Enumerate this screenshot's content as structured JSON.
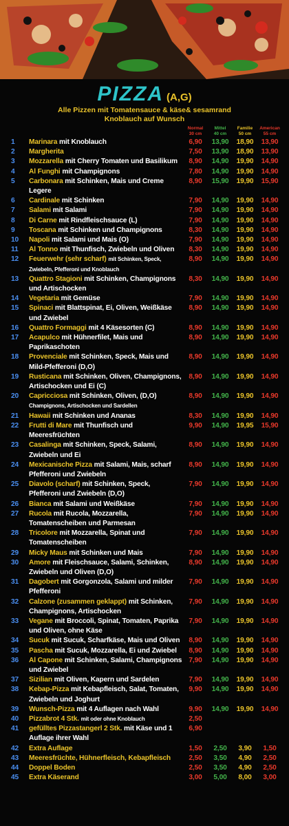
{
  "header": {
    "title": "PIZZA",
    "allergens": "(A,G)",
    "subtitle": "Alle Pizzen mit Tomatensauce & käse& sesamrand",
    "note": "Knoblauch auf Wunsch",
    "columns": [
      {
        "name": "Normal",
        "size": "30 cm"
      },
      {
        "name": "Mittel",
        "size": "40 cm"
      },
      {
        "name": "Familie",
        "size": "50 cm"
      },
      {
        "name": "American",
        "size": "55 cm"
      }
    ]
  },
  "menu": {
    "rows": [
      {
        "num": "1",
        "name": "Marinara",
        "desc": "mit Knoblauch",
        "prices": [
          "6,90",
          "13,90",
          "18,90",
          "13,90"
        ]
      },
      {
        "num": "2",
        "name": "Margherita",
        "prices": [
          "7,50",
          "13,90",
          "18,90",
          "13,90"
        ]
      },
      {
        "num": "3",
        "name": "Mozzarella",
        "desc": "mit Cherry Tomaten und Basilikum",
        "prices": [
          "8,90",
          "14,90",
          "19,90",
          "14,90"
        ]
      },
      {
        "num": "4",
        "name": "Al Funghi",
        "desc": "mit Champignons",
        "prices": [
          "7,80",
          "14,90",
          "19,90",
          "14,90"
        ]
      },
      {
        "num": "5",
        "name": "Carbonara",
        "desc": "mit Schinken, Mais und Creme Legere",
        "prices": [
          "8,90",
          "15,90",
          "19,90",
          "15,90"
        ]
      },
      {
        "num": "6",
        "name": "Cardinale",
        "desc": "mit Schinken",
        "prices": [
          "7,90",
          "14,90",
          "19,90",
          "14,90"
        ]
      },
      {
        "num": "7",
        "name": "Salami",
        "desc": "mit Salami",
        "prices": [
          "7,90",
          "14,90",
          "19,90",
          "14,90"
        ]
      },
      {
        "num": "8",
        "name": "Di Carne",
        "desc": "mit Rindfleischsauce",
        "note": "(L)",
        "prices": [
          "7,90",
          "14,90",
          "19,90",
          "14,90"
        ]
      },
      {
        "num": "9",
        "name": "Toscana",
        "desc": "mit Schinken und Champignons",
        "prices": [
          "8,30",
          "14,90",
          "19,90",
          "14,90"
        ]
      },
      {
        "num": "10",
        "name": "Napoli",
        "desc": "mit Salami und Mais",
        "note": "(O)",
        "prices": [
          "7,90",
          "14,90",
          "19,90",
          "14,90"
        ]
      },
      {
        "num": "11",
        "name": "Al Tonno",
        "desc": "mit Thunfisch, Zwiebeln und Oliven",
        "prices": [
          "8,30",
          "14,90",
          "19,90",
          "14,90"
        ]
      },
      {
        "num": "12",
        "name": "Feuerwehr (sehr scharf)",
        "desc": "mit Schinken, Speck, Zwiebeln, Pfefferoni und Knoblauch",
        "prices": [
          "8,90",
          "14,90",
          "19,90",
          "14,90"
        ]
      },
      {
        "num": "13",
        "name": "Quattro Stagioni",
        "desc": "mit Schinken, Champignons und Artischocken",
        "prices": [
          "8,30",
          "14,90",
          "19,90",
          "14,90"
        ]
      },
      {
        "num": "14",
        "name": "Vegetaria",
        "desc": "mit Gemüse",
        "prices": [
          "7,90",
          "14,90",
          "19,90",
          "14,90"
        ]
      },
      {
        "num": "15",
        "name": "Spinaci",
        "desc": "mit Blattspinat, Ei, Oliven, Weißkäse und Zwiebel",
        "prices": [
          "8,90",
          "14,90",
          "19,90",
          "14,90"
        ]
      },
      {
        "num": "16",
        "name": "Quattro Formaggi",
        "desc": "mit 4 Käsesorten",
        "note": "(C)",
        "prices": [
          "8,90",
          "14,90",
          "19,90",
          "14,90"
        ]
      },
      {
        "num": "17",
        "name": "Acapulco",
        "desc": "mit Hühnerfilet, Mais und Paprikaschoten",
        "prices": [
          "8,90",
          "14,90",
          "19,90",
          "14,90"
        ]
      },
      {
        "num": "18",
        "name": "Provenciale",
        "desc": "mit Schinken, Speck, Mais und Mild-Pfefferoni",
        "note": "(D,O)",
        "prices": [
          "8,90",
          "14,90",
          "19,90",
          "14,90"
        ]
      },
      {
        "num": "19",
        "name": "Rusticana",
        "desc": "mit Schinken, Oliven, Champignons, Artischocken und Ei",
        "note": "(C)",
        "prices": [
          "8,90",
          "14,90",
          "19,90",
          "14,90"
        ]
      },
      {
        "num": "20",
        "name": "Capricciosa",
        "desc": "mit Schinken, Oliven,",
        "note": "(D,O)",
        "desc2": "Champignons, Artischocken und Sardellen",
        "prices": [
          "8,90",
          "14,90",
          "19,90",
          "14,90"
        ]
      },
      {
        "num": "21",
        "name": "Hawaii",
        "desc": "mit Schinken und Ananas",
        "prices": [
          "8,30",
          "14,90",
          "19,90",
          "14,90"
        ]
      },
      {
        "num": "22",
        "name": "Frutti di Mare",
        "desc": "mit Thunfisch und Meeresfrüchten",
        "prices": [
          "9,90",
          "14,90",
          "19,95",
          "15,90"
        ]
      },
      {
        "num": "23",
        "name": "Casalinga",
        "desc": "mit Schinken, Speck, Salami, Zwiebeln und Ei",
        "prices": [
          "8,90",
          "14,90",
          "19,90",
          "14,90"
        ]
      },
      {
        "num": "24",
        "name": "Mexicanische Pizza",
        "desc": "mit Salami, Mais, scharf Pfefferoni und Zwiebeln",
        "prices": [
          "8,90",
          "14,90",
          "19,90",
          "14,90"
        ]
      },
      {
        "num": "25",
        "name": "Diavolo (scharf)",
        "desc": "mit Schinken, Speck, Pfefferoni und Zwiebeln",
        "note": "(D,O)",
        "prices": [
          "7,90",
          "14,90",
          "19,90",
          "14,90"
        ]
      },
      {
        "num": "26",
        "name": "Bianca",
        "desc": "mit Salami und Weißkäse",
        "prices": [
          "7,90",
          "14,90",
          "19,90",
          "14,90"
        ]
      },
      {
        "num": "27",
        "name": "Rucola",
        "desc": "mit Rucola, Mozzarella, Tomatenscheiben und Parmesan",
        "prices": [
          "7,90",
          "14,90",
          "19,90",
          "14,90"
        ]
      },
      {
        "num": "28",
        "name": "Tricolore",
        "desc": "mit Mozzarella, Spinat und Tomatenscheiben",
        "prices": [
          "7,90",
          "14,90",
          "19,90",
          "14,90"
        ]
      },
      {
        "num": "29",
        "name": "Micky Maus",
        "desc": "mit Schinken und Mais",
        "prices": [
          "7,90",
          "14,90",
          "19,90",
          "14,90"
        ]
      },
      {
        "num": "30",
        "name": "Amore",
        "desc": "mit Fleischsauce, Salami, Schinken, Zwiebeln und Oliven",
        "note": "(D,O)",
        "prices": [
          "8,90",
          "14,90",
          "19,90",
          "14,90"
        ]
      },
      {
        "num": "31",
        "name": "Dagobert",
        "desc": "mit Gorgonzola, Salami und milder Pfefferoni",
        "prices": [
          "7,90",
          "14,90",
          "19,90",
          "14,90"
        ]
      },
      {
        "num": "32",
        "name": "Calzone (zusammen geklappt)",
        "desc": "mit Schinken, Champignons, Artischocken",
        "prices": [
          "7,90",
          "14,90",
          "19,90",
          "14,90"
        ]
      },
      {
        "num": "33",
        "name": "Vegane",
        "desc": "mit Broccoli, Spinat, Tomaten, Paprika und Oliven, ohne Käse",
        "prices": [
          "7,90",
          "14,90",
          "19,90",
          "14,90"
        ]
      },
      {
        "num": "34",
        "name": "Sucuk",
        "desc": "mit Sucuk, Scharfkäse, Mais und Oliven",
        "prices": [
          "8,90",
          "14,90",
          "19,90",
          "14,90"
        ]
      },
      {
        "num": "35",
        "name": "Pascha",
        "desc": "mit Sucuk, Mozzarella, Ei und Zwiebel",
        "prices": [
          "8,90",
          "14,90",
          "19,90",
          "14,90"
        ]
      },
      {
        "num": "36",
        "name": "Al Capone",
        "desc": "mit Schinken, Salami, Champignons und Zwiebel",
        "prices": [
          "7,90",
          "14,90",
          "19,90",
          "14,90"
        ]
      },
      {
        "num": "37",
        "name": "Sizilian",
        "desc": "mit Oliven, Kapern und Sardelen",
        "prices": [
          "7,90",
          "14,90",
          "19,90",
          "14,90"
        ]
      },
      {
        "num": "38",
        "name": "Kebap-Pizza",
        "desc": "mit Kebapfleisch, Salat, Tomaten, Zwiebeln und Joghurt",
        "prices": [
          "9,90",
          "14,90",
          "19,90",
          "14,90"
        ]
      },
      {
        "num": "39",
        "name": "Wunsch-Pizza",
        "desc": "mit 4 Auflagen nach Wahl",
        "prices": [
          "9,90",
          "14,90",
          "19,90",
          "14,90"
        ]
      },
      {
        "num": "40",
        "name": "Pizzabrot 4 Stk.",
        "desc": "mit oder ohne Knoblauch",
        "prices": [
          "2,50"
        ]
      },
      {
        "num": "41",
        "name": "gefülltes Pizzastangerl 2 Stk.",
        "desc": "mit Käse und 1 Auflage ihrer Wahl",
        "prices": [
          "6,90"
        ]
      },
      {
        "num": "42",
        "name": "Extra Auflage",
        "prices": [
          "1,50",
          "2,50",
          "3,90",
          "1,50"
        ]
      },
      {
        "num": "43",
        "name": "Meeresfrüchte, Hühnerfleisch, Kebapfleisch",
        "prices": [
          "2,50",
          "3,50",
          "4,90",
          "2,50"
        ]
      },
      {
        "num": "44",
        "name": "Doppel Boden",
        "prices": [
          "2,50",
          "3,50",
          "4,90",
          "2,50"
        ]
      },
      {
        "num": "45",
        "name": "Extra Käserand",
        "prices": [
          "3,00",
          "5,00",
          "8,00",
          "3,00"
        ]
      }
    ]
  }
}
